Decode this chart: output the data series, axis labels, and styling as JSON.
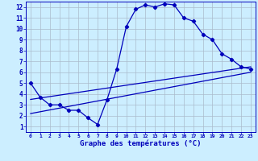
{
  "xlabel": "Graphe des températures (°C)",
  "bg_color": "#cceeff",
  "grid_color": "#aabbcc",
  "line_color": "#0000bb",
  "xlim": [
    -0.5,
    23.5
  ],
  "ylim": [
    0.5,
    12.5
  ],
  "xticks": [
    0,
    1,
    2,
    3,
    4,
    5,
    6,
    7,
    8,
    9,
    10,
    11,
    12,
    13,
    14,
    15,
    16,
    17,
    18,
    19,
    20,
    21,
    22,
    23
  ],
  "yticks": [
    1,
    2,
    3,
    4,
    5,
    6,
    7,
    8,
    9,
    10,
    11,
    12
  ],
  "hourly_x": [
    0,
    1,
    2,
    3,
    4,
    5,
    6,
    7,
    8,
    9,
    10,
    11,
    12,
    13,
    14,
    15,
    16,
    17,
    18,
    19,
    20,
    21,
    22,
    23
  ],
  "hourly_y": [
    5.0,
    3.7,
    3.0,
    3.0,
    2.5,
    2.5,
    1.8,
    1.2,
    3.5,
    6.3,
    10.2,
    11.8,
    12.2,
    12.0,
    12.3,
    12.2,
    11.0,
    10.7,
    9.5,
    9.0,
    7.7,
    7.2,
    6.5,
    6.3
  ],
  "line2_x": [
    0,
    23
  ],
  "line2_y": [
    3.5,
    6.5
  ],
  "line3_x": [
    0,
    23
  ],
  "line3_y": [
    2.2,
    6.0
  ]
}
